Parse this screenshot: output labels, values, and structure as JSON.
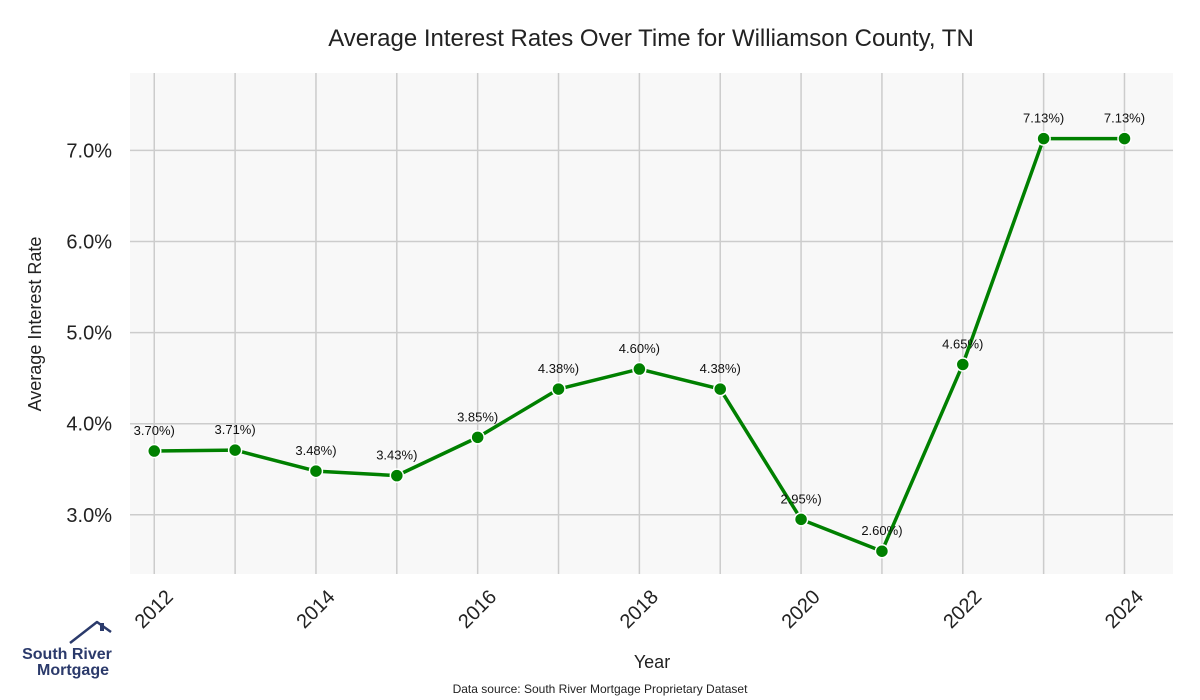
{
  "chart_data": {
    "type": "line",
    "title": "Average Interest Rates Over Time for Williamson County, TN",
    "xlabel": "Year",
    "ylabel": "Average Interest Rate",
    "x": [
      2012,
      2013,
      2014,
      2015,
      2016,
      2017,
      2018,
      2019,
      2020,
      2021,
      2022,
      2023,
      2024
    ],
    "values": [
      3.7,
      3.71,
      3.48,
      3.43,
      3.85,
      4.38,
      4.6,
      4.38,
      2.95,
      2.6,
      4.65,
      7.13,
      7.13
    ],
    "data_labels": [
      "3.70%)",
      "3.71%)",
      "3.48%)",
      "3.43%)",
      "3.85%)",
      "4.38%)",
      "4.60%)",
      "4.38%)",
      "2.95%)",
      "2.60%)",
      "4.65%)",
      "7.13%)",
      "7.13%)"
    ],
    "x_ticks": [
      2012,
      2014,
      2016,
      2018,
      2020,
      2022,
      2024
    ],
    "y_ticks": [
      "3.0%",
      "4.0%",
      "5.0%",
      "6.0%",
      "7.0%"
    ],
    "y_tick_values": [
      3.0,
      4.0,
      5.0,
      6.0,
      7.0
    ],
    "xlim": [
      2011.7,
      2024.6
    ],
    "ylim": [
      2.35,
      7.85
    ],
    "grid": true,
    "line_color": "#008000",
    "background_color": "#f8f8f8",
    "grid_color": "#cccccc"
  },
  "footer": {
    "source": "Data source: South River Mortgage Proprietary Dataset"
  },
  "logo": {
    "line1": "South River",
    "line2": "Mortgage",
    "color": "#2b3a6b"
  }
}
